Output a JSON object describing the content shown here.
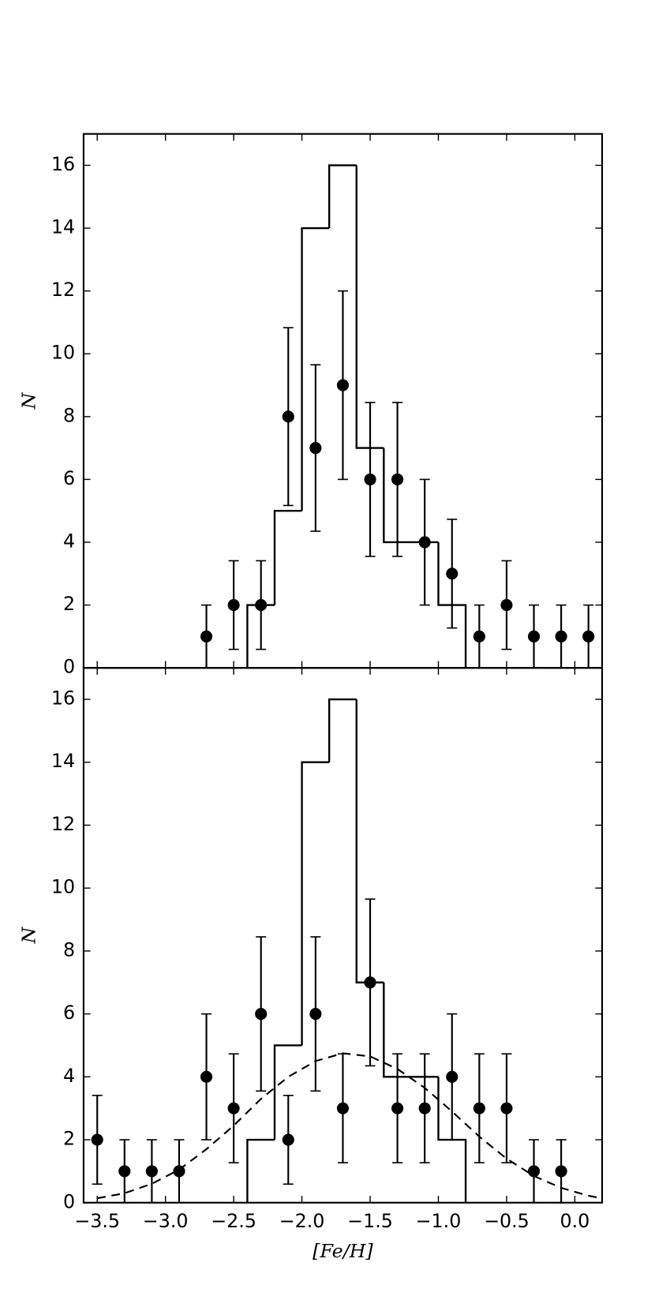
{
  "chart_data": [
    {
      "type": "histogram",
      "color": "#000000",
      "bins": [
        -2.4,
        -2.2,
        -2.0,
        -1.8,
        -1.6,
        -1.4,
        -1.2,
        -1.0,
        -0.8
      ],
      "counts": [
        2,
        5,
        14,
        16,
        7,
        4,
        4,
        2
      ],
      "points": {
        "x": [
          -2.7,
          -2.5,
          -2.3,
          -2.1,
          -1.9,
          -1.7,
          -1.5,
          -1.3,
          -1.1,
          -0.9,
          -0.7,
          -0.5,
          -0.3,
          -0.1,
          0.1
        ],
        "values": [
          1,
          2,
          2,
          8,
          7,
          9,
          6,
          6,
          4,
          3,
          1,
          2,
          1,
          1,
          1
        ],
        "errors": [
          1,
          1.41,
          1.41,
          2.83,
          2.65,
          3,
          2.45,
          2.45,
          2,
          1.73,
          1,
          1.41,
          1,
          1,
          1
        ]
      },
      "xlim": [
        -3.6,
        0.2
      ],
      "xticks": [
        -3.5,
        -3.0,
        -2.5,
        -2.0,
        -1.5,
        -1.0,
        -0.5,
        0.0
      ],
      "ylim": [
        0,
        17
      ],
      "yticks": [
        0,
        2,
        4,
        6,
        8,
        10,
        12,
        14,
        16
      ],
      "ylabel": "N"
    },
    {
      "type": "histogram",
      "color": "#000000",
      "bins": [
        -2.4,
        -2.2,
        -2.0,
        -1.8,
        -1.6,
        -1.4,
        -1.2,
        -1.0,
        -0.8
      ],
      "counts": [
        2,
        5,
        14,
        16,
        7,
        4,
        4,
        2
      ],
      "points": {
        "x": [
          -3.5,
          -3.3,
          -3.1,
          -2.9,
          -2.7,
          -2.5,
          -2.3,
          -2.1,
          -1.9,
          -1.7,
          -1.5,
          -1.3,
          -1.1,
          -0.9,
          -0.7,
          -0.5,
          -0.3,
          -0.1
        ],
        "values": [
          2,
          1,
          1,
          1,
          4,
          3,
          6,
          2,
          6,
          3,
          7,
          3,
          3,
          4,
          3,
          3,
          1,
          1
        ],
        "errors": [
          1.41,
          1,
          1,
          1,
          2,
          1.73,
          2.45,
          1.41,
          2.45,
          1.73,
          2.65,
          1.73,
          1.73,
          2,
          1.73,
          1.73,
          1,
          1
        ]
      },
      "curve": {
        "x": [
          -3.5,
          -3.3,
          -3.1,
          -2.9,
          -2.7,
          -2.5,
          -2.3,
          -2.1,
          -1.9,
          -1.7,
          -1.5,
          -1.3,
          -1.1,
          -0.9,
          -0.7,
          -0.5,
          -0.3,
          -0.1,
          0.1,
          0.2
        ],
        "values": [
          0.14,
          0.3,
          0.6,
          1.05,
          1.7,
          2.45,
          3.3,
          4.0,
          4.5,
          4.75,
          4.65,
          4.25,
          3.65,
          2.9,
          2.1,
          1.4,
          0.85,
          0.47,
          0.22,
          0.14
        ]
      },
      "xlim": [
        -3.6,
        0.2
      ],
      "xticks": [
        {
          "value": -3.5,
          "label": "−3.5"
        },
        {
          "value": -3.0,
          "label": "−3.0"
        },
        {
          "value": -2.5,
          "label": "−2.5"
        },
        {
          "value": -2.0,
          "label": "−2.0"
        },
        {
          "value": -1.5,
          "label": "−1.5"
        },
        {
          "value": -1.0,
          "label": "−1.0"
        },
        {
          "value": -0.5,
          "label": "−0.5"
        },
        {
          "value": 0.0,
          "label": "0.0"
        }
      ],
      "ylim": [
        0,
        17
      ],
      "yticks": [
        0,
        2,
        4,
        6,
        8,
        10,
        12,
        14,
        16
      ],
      "ylabel": "N",
      "xlabel": "[Fe/H]"
    }
  ]
}
